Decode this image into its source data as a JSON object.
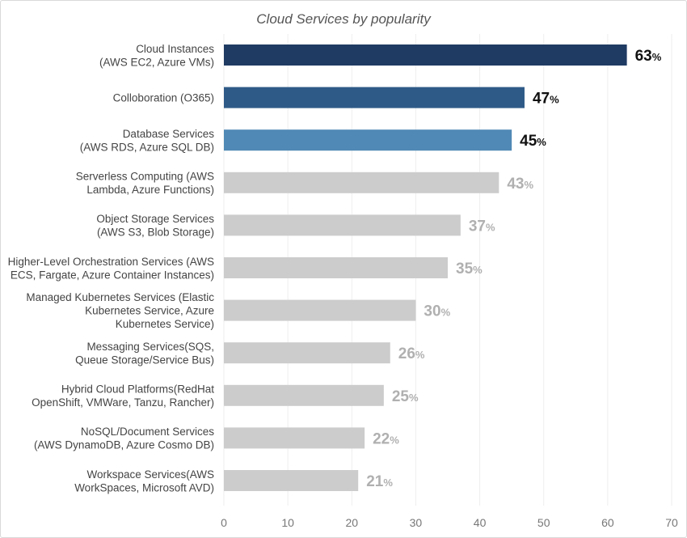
{
  "chart_data": {
    "type": "bar",
    "orientation": "horizontal",
    "title": "Cloud Services by popularity",
    "xlabel": "",
    "ylabel": "",
    "xlim": [
      0,
      70
    ],
    "x_ticks": [
      0,
      10,
      20,
      30,
      40,
      50,
      60,
      70
    ],
    "grid": true,
    "value_suffix": "%",
    "categories": [
      [
        "Cloud Instances",
        "(AWS EC2, Azure VMs)"
      ],
      [
        "Colloboration (O365)"
      ],
      [
        "Database Services",
        "(AWS RDS, Azure SQL DB)"
      ],
      [
        "Serverless Computing (AWS",
        "Lambda, Azure Functions)"
      ],
      [
        "Object Storage Services",
        "(AWS S3, Blob Storage)"
      ],
      [
        "Higher-Level Orchestration Services (AWS",
        "ECS, Fargate, Azure Container Instances)"
      ],
      [
        "Managed Kubernetes Services (Elastic",
        "Kubernetes Service, Azure",
        "Kubernetes Service)"
      ],
      [
        "Messaging Services(SQS,",
        "Queue Storage/Service Bus)"
      ],
      [
        "Hybrid Cloud Platforms(RedHat",
        "OpenShift, VMWare, Tanzu, Rancher)"
      ],
      [
        "NoSQL/Document Services",
        "(AWS DynamoDB, Azure Cosmo DB)"
      ],
      [
        "Workspace Services(AWS",
        "WorkSpaces, Microsoft AVD)"
      ]
    ],
    "values": [
      63,
      47,
      45,
      43,
      37,
      35,
      30,
      26,
      25,
      22,
      21
    ],
    "bar_colors": [
      "#1f3b63",
      "#2e5a87",
      "#5089b5",
      "#cccccc",
      "#cccccc",
      "#cccccc",
      "#cccccc",
      "#cccccc",
      "#cccccc",
      "#cccccc",
      "#cccccc"
    ],
    "label_colors": [
      "#111111",
      "#111111",
      "#111111",
      "#b0b0b0",
      "#b0b0b0",
      "#b0b0b0",
      "#b0b0b0",
      "#b0b0b0",
      "#b0b0b0",
      "#b0b0b0",
      "#b0b0b0"
    ],
    "grid_color": "#eeeeee",
    "tick_color": "#777777",
    "category_color": "#444444"
  }
}
